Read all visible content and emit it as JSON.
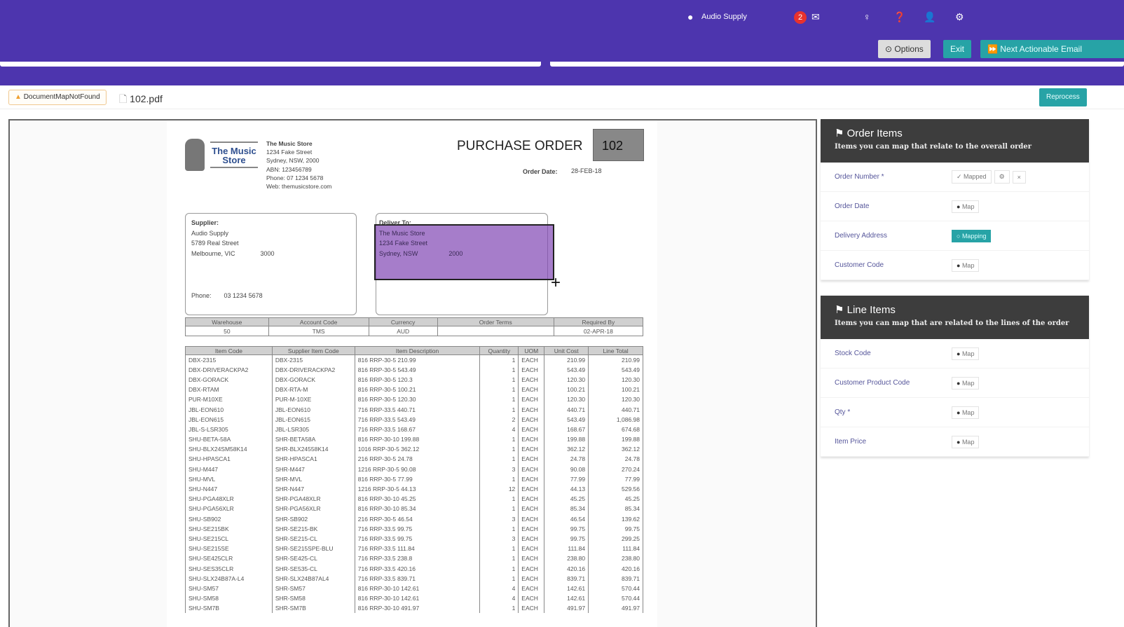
{
  "header": {
    "company": "Audio Supply",
    "notification_count": "2",
    "options_label": "Options",
    "exit_label": "Exit",
    "next_label": "Next Actionable Email",
    "colors": {
      "brand": "#4d35ae",
      "accent": "#27a3a6",
      "badge": "#e8322d"
    }
  },
  "toolbar": {
    "warning": "DocumentMapNotFound",
    "filename": "102.pdf",
    "reprocess_label": "Reprocess"
  },
  "document": {
    "store": {
      "logo_text": "The Music Store",
      "name": "The Music Store",
      "lines": [
        "1234 Fake Street",
        "Sydney, NSW, 2000",
        "ABN: 123456789",
        "Phone: 07 1234 5678",
        "Web: themusicstore.com"
      ]
    },
    "title": "PURCHASE ORDER",
    "number": "102",
    "order_date_label": "Order Date:",
    "order_date": "28-FEB-18",
    "supplier": {
      "label": "Supplier:",
      "name": "Audio Supply",
      "street": "5789 Real Street",
      "city": "Melbourne, VIC",
      "postcode": "3000",
      "phone_label": "Phone:",
      "phone": "03 1234 5678"
    },
    "deliver": {
      "label": "Deliver To:",
      "name": "The Music Store",
      "street": "1234 Fake Street",
      "city": "Sydney, NSW",
      "postcode": "2000"
    },
    "info_headers": [
      "Warehouse",
      "Account Code",
      "Currency",
      "Order Terms",
      "Required By"
    ],
    "info_values": [
      "50",
      "TMS",
      "AUD",
      "",
      "02-APR-18"
    ],
    "item_headers": [
      "Item Code",
      "Supplier Item Code",
      "Item Description",
      "Quantity",
      "UOM",
      "Unit Cost",
      "Line Total"
    ],
    "items": [
      [
        "DBX-2315",
        "DBX-2315",
        "816 RRP-30-5 210.99",
        "1",
        "EACH",
        "210.99",
        "210.99"
      ],
      [
        "DBX-DRIVERACKPA2",
        "DBX-DRIVERACKPA2",
        "816 RRP-30-5 543.49",
        "1",
        "EACH",
        "543.49",
        "543.49"
      ],
      [
        "DBX-GORACK",
        "DBX-GORACK",
        "816 RRP-30-5 120.3",
        "1",
        "EACH",
        "120.30",
        "120.30"
      ],
      [
        "DBX-RTAM",
        "DBX-RTA-M",
        "816 RRP-30-5 100.21",
        "1",
        "EACH",
        "100.21",
        "100.21"
      ],
      [
        "PUR-M10XE",
        "PUR-M-10XE",
        "816 RRP-30-5 120.30",
        "1",
        "EACH",
        "120.30",
        "120.30"
      ],
      [
        "JBL-EON610",
        "JBL-EON610",
        "716 RRP-33.5 440.71",
        "1",
        "EACH",
        "440.71",
        "440.71"
      ],
      [
        "JBL-EON615",
        "JBL-EON615",
        "716 RRP-33.5 543.49",
        "2",
        "EACH",
        "543.49",
        "1,086.98"
      ],
      [
        "JBL-S-LSR305",
        "JBL-LSR305",
        "716 RRP-33.5 168.67",
        "4",
        "EACH",
        "168.67",
        "674.68"
      ],
      [
        "SHU-BETA-58A",
        "SHR-BETA58A",
        "816 RRP-30-10 199.88",
        "1",
        "EACH",
        "199.88",
        "199.88"
      ],
      [
        "SHU-BLX24SM58K14",
        "SHR-BLX24558K14",
        "1016 RRP-30-5 362.12",
        "1",
        "EACH",
        "362.12",
        "362.12"
      ],
      [
        "SHU-HPASCA1",
        "SHR-HPASCA1",
        "216 RRP-30-5 24.78",
        "1",
        "EACH",
        "24.78",
        "24.78"
      ],
      [
        "SHU-M447",
        "SHR-M447",
        "1216 RRP-30-5 90.08",
        "3",
        "EACH",
        "90.08",
        "270.24"
      ],
      [
        "SHU-MVL",
        "SHR-MVL",
        "816 RRP-30-5 77.99",
        "1",
        "EACH",
        "77.99",
        "77.99"
      ],
      [
        "SHU-N447",
        "SHR-N447",
        "1216 RRP-30-5 44.13",
        "12",
        "EACH",
        "44.13",
        "529.56"
      ],
      [
        "SHU-PGA48XLR",
        "SHR-PGA48XLR",
        "816 RRP-30-10 45.25",
        "1",
        "EACH",
        "45.25",
        "45.25"
      ],
      [
        "SHU-PGA56XLR",
        "SHR-PGA56XLR",
        "816 RRP-30-10 85.34",
        "1",
        "EACH",
        "85.34",
        "85.34"
      ],
      [
        "SHU-SB902",
        "SHR-SB902",
        "216 RRP-30-5 46.54",
        "3",
        "EACH",
        "46.54",
        "139.62"
      ],
      [
        "SHU-SE215BK",
        "SHR-SE215-BK",
        "716 RRP-33.5 99.75",
        "1",
        "EACH",
        "99.75",
        "99.75"
      ],
      [
        "SHU-SE215CL",
        "SHR-SE215-CL",
        "716 RRP-33.5 99.75",
        "3",
        "EACH",
        "99.75",
        "299.25"
      ],
      [
        "SHU-SE215SE",
        "SHR-SE215SPE-BLU",
        "716 RRP-33.5 111.84",
        "1",
        "EACH",
        "111.84",
        "111.84"
      ],
      [
        "SHU-SE425CLR",
        "SHR-SE425-CL",
        "716 RRP-33.5 238.8",
        "1",
        "EACH",
        "238.80",
        "238.80"
      ],
      [
        "SHU-SES35CLR",
        "SHR-SE535-CL",
        "716 RRP-33.5 420.16",
        "1",
        "EACH",
        "420.16",
        "420.16"
      ],
      [
        "SHU-SLX24B87A-L4",
        "SHR-SLX24B87AL4",
        "716 RRP-33.5 839.71",
        "1",
        "EACH",
        "839.71",
        "839.71"
      ],
      [
        "SHU-SM57",
        "SHR-SM57",
        "816 RRP-30-10 142.61",
        "4",
        "EACH",
        "142.61",
        "570.44"
      ],
      [
        "SHU-SM58",
        "SHR-SM58",
        "816 RRP-30-10 142.61",
        "4",
        "EACH",
        "142.61",
        "570.44"
      ],
      [
        "SHU-SM7B",
        "SHR-SM7B",
        "816 RRP-30-10 491.97",
        "1",
        "EACH",
        "491.97",
        "491.97"
      ]
    ]
  },
  "panel": {
    "order": {
      "title": "Order Items",
      "subtitle": "Items you can map that relate to the overall order",
      "rows": [
        {
          "label": "Order Number *",
          "status": "✓ Mapped"
        },
        {
          "label": "Order Date",
          "status": "Map"
        },
        {
          "label": "Delivery Address",
          "status": "Mapping"
        },
        {
          "label": "Customer Code",
          "status": "Map"
        }
      ]
    },
    "line": {
      "title": "Line Items",
      "subtitle": "Items you can map that are related to the lines of the order",
      "rows": [
        {
          "label": "Stock Code",
          "status": "Map"
        },
        {
          "label": "Customer Product Code",
          "status": "Map"
        },
        {
          "label": "Qty *",
          "status": "Map"
        },
        {
          "label": "Item Price",
          "status": "Map"
        }
      ]
    }
  }
}
